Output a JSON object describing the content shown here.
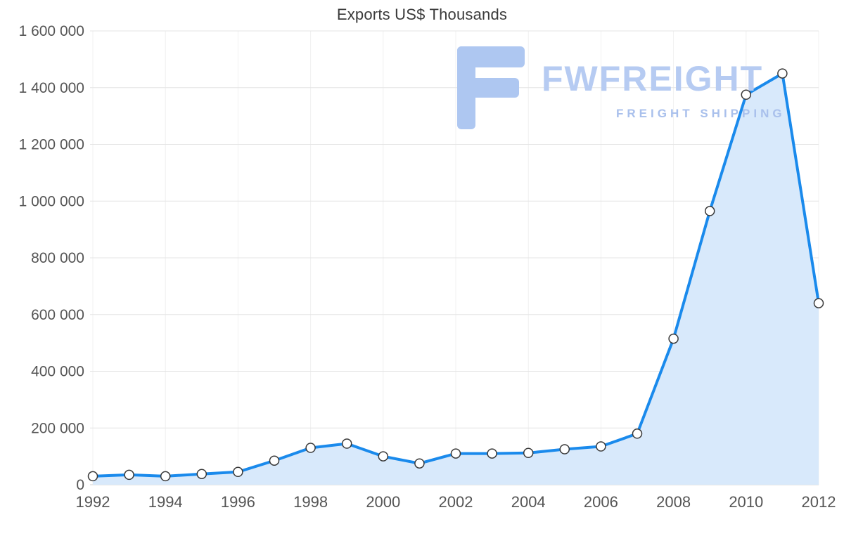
{
  "chart_data": {
    "type": "area",
    "title": "Exports US$ Thousands",
    "categories": [
      1992,
      1993,
      1994,
      1995,
      1996,
      1997,
      1998,
      1999,
      2000,
      2001,
      2002,
      2003,
      2004,
      2005,
      2006,
      2007,
      2008,
      2009,
      2010,
      2011,
      2012
    ],
    "values": [
      30000,
      35000,
      30000,
      38000,
      45000,
      85000,
      130000,
      145000,
      100000,
      75000,
      110000,
      110000,
      112000,
      125000,
      135000,
      180000,
      515000,
      965000,
      1375000,
      1450000,
      640000
    ],
    "xlabel": "",
    "ylabel": "",
    "ylim": [
      0,
      1600000
    ],
    "y_ticks": [
      0,
      200000,
      400000,
      600000,
      800000,
      1000000,
      1200000,
      1400000,
      1600000
    ],
    "y_tick_labels": [
      "0",
      "200 000",
      "400 000",
      "600 000",
      "800 000",
      "1 000 000",
      "1 200 000",
      "1 400 000",
      "1 600 000"
    ],
    "x_tick_labels": [
      "1992",
      "1994",
      "1996",
      "1998",
      "2000",
      "2002",
      "2004",
      "2006",
      "2008",
      "2010",
      "2012"
    ],
    "x_tick_step": 2,
    "grid": true,
    "legend": false,
    "line_color": "#1a8aec",
    "fill_color": "#d8e9fb",
    "marker_fill": "#ffffff",
    "marker_stroke": "#383838",
    "grid_color": "#e4e4e4",
    "vgrid_color": "#f0f0f0",
    "axis_text_color": "#555555"
  },
  "watermark": {
    "brand": "FWFREIGHT",
    "tagline": "FREIGHT SHIPPING",
    "color": "#b6cbf2",
    "logo_icon": "fwfreight-f-logo"
  }
}
